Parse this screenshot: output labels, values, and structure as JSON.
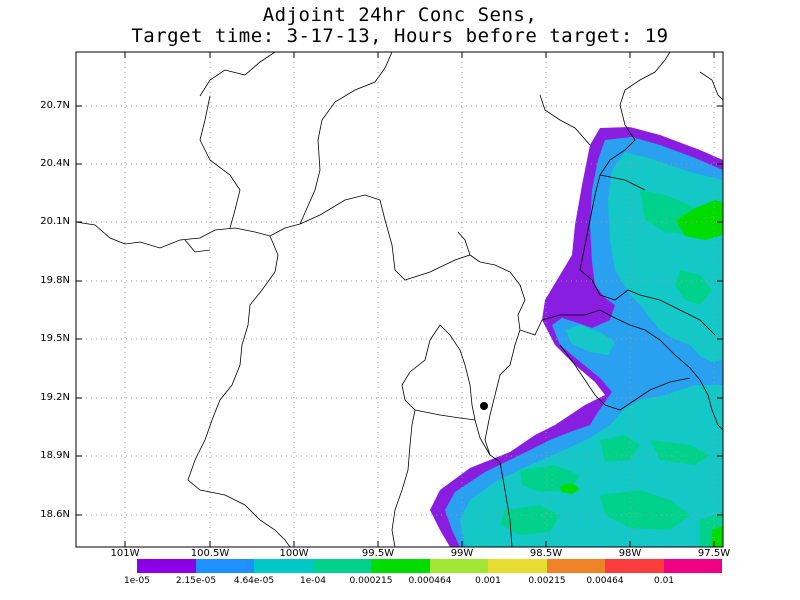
{
  "title": {
    "line1": "Adjoint 24hr Conc Sens,",
    "line2": "Target time: 3-17-13, Hours before target: 19"
  },
  "axes": {
    "lat_labels": [
      "20.7N",
      "20.4N",
      "20.1N",
      "19.8N",
      "19.5N",
      "19.2N",
      "18.9N",
      "18.6N"
    ],
    "lon_labels": [
      "101W",
      "100.5W",
      "100W",
      "99.5W",
      "99W",
      "98.5W",
      "98W",
      "97.5W"
    ]
  },
  "colorbar": {
    "labels": [
      "1e-05",
      "2.15e-05",
      "4.64e-05",
      "1e-04",
      "0.000215",
      "0.000464",
      "0.001",
      "0.00215",
      "0.00464",
      "0.01"
    ],
    "colors": [
      "#8b00e6",
      "#1e90ff",
      "#00c8c8",
      "#00d28c",
      "#00dc00",
      "#a0e632",
      "#e6dc32",
      "#f08228",
      "#fa3c3c",
      "#f00082"
    ]
  },
  "map_colors": {
    "purple": "#8a1ee0",
    "blue": "#2aa0f0",
    "cyan": "#14c8c8",
    "green": "#00d28c",
    "bright_green": "#00dc00"
  },
  "marker": "target-location"
}
